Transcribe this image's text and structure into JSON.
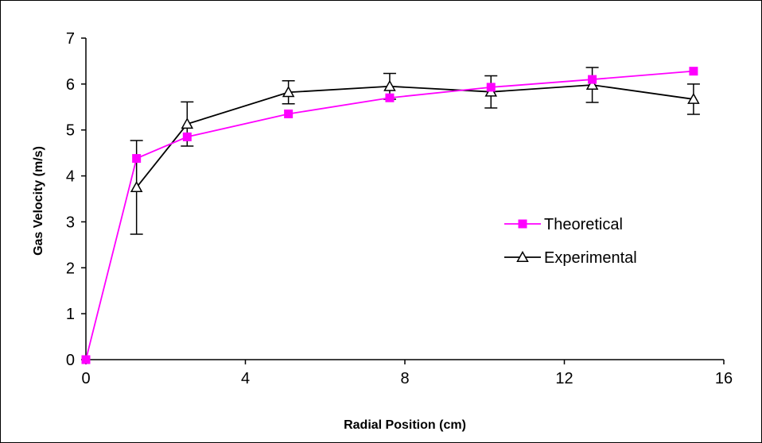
{
  "chart_data": {
    "type": "line",
    "xlabel": "Radial Position (cm)",
    "ylabel": "Gas Velocity (m/s)",
    "xlim": [
      0,
      16
    ],
    "ylim": [
      0,
      7
    ],
    "xticks": [
      0,
      4,
      8,
      12,
      16
    ],
    "yticks": [
      0,
      1,
      2,
      3,
      4,
      5,
      6,
      7
    ],
    "grid": false,
    "legend_position": "right",
    "series": [
      {
        "name": "Theoretical",
        "color": "#ff00ff",
        "marker": "square",
        "x": [
          0,
          1.27,
          2.54,
          5.08,
          7.62,
          10.16,
          12.7,
          15.24
        ],
        "y": [
          0,
          4.38,
          4.85,
          5.35,
          5.7,
          5.93,
          6.1,
          6.28
        ]
      },
      {
        "name": "Experimental",
        "color": "#000000",
        "marker": "triangle-open",
        "x": [
          1.27,
          2.54,
          5.08,
          7.62,
          10.16,
          12.7,
          15.24
        ],
        "y": [
          3.75,
          5.13,
          5.82,
          5.95,
          5.83,
          5.98,
          5.67
        ],
        "error": [
          1.02,
          0.48,
          0.25,
          0.28,
          0.35,
          0.38,
          0.33
        ]
      }
    ]
  }
}
